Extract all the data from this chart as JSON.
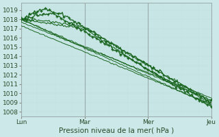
{
  "xlabel": "Pression niveau de la mer( hPa )",
  "bg_color": "#cce8e8",
  "plot_bg_color": "#cce8e8",
  "grid_color_minor": "#bbdddd",
  "grid_color_major": "#99bbbb",
  "line_color": "#1a6620",
  "ylim": [
    1007.5,
    1019.8
  ],
  "yticks": [
    1008,
    1009,
    1010,
    1011,
    1012,
    1013,
    1014,
    1015,
    1016,
    1017,
    1018,
    1019
  ],
  "day_ticks": [
    0,
    48,
    96,
    144
  ],
  "day_labels": [
    "Lun",
    "Mar",
    "Mer",
    "Jeu"
  ],
  "n_hours": 144
}
